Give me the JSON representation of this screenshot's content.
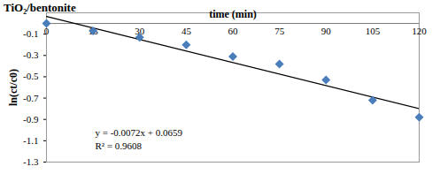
{
  "chart_data": {
    "type": "scatter",
    "title": "TiO₂/bentonite",
    "x_label": "time (min)",
    "y_label": "ln(ct/c0)",
    "x": [
      0,
      15,
      30,
      45,
      60,
      75,
      90,
      105,
      120
    ],
    "values": [
      0,
      -0.07,
      -0.13,
      -0.2,
      -0.31,
      -0.38,
      -0.53,
      -0.72,
      -0.88
    ],
    "color": "#4a7ebb",
    "marker": "diamond",
    "xlim": [
      0,
      120
    ],
    "xticks": [
      0,
      15,
      30,
      45,
      60,
      75,
      90,
      105,
      120
    ],
    "ylim": [
      -1.3,
      0.1
    ],
    "yticks": [
      -1.3,
      -1.1,
      -0.9,
      -0.7,
      -0.5,
      -0.3,
      -0.1
    ],
    "grid": false,
    "trendline": {
      "slope": -0.0072,
      "intercept": 0.0659,
      "r_squared": 0.9608
    },
    "annotations": [
      "y = -0.0072x + 0.0659",
      "R² = 0.9608"
    ]
  }
}
